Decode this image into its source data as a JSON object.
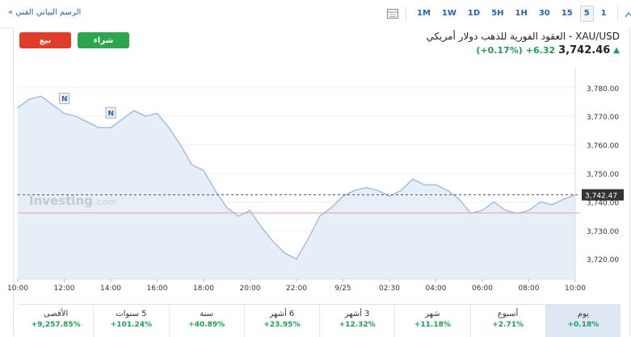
{
  "toolbar": {
    "technical_chart_label": "« الرسم البياني الفني",
    "timeframes": [
      "1M",
      "1W",
      "1D",
      "5H",
      "1H",
      "30",
      "15",
      "5",
      "1"
    ],
    "active_timeframe": "5"
  },
  "trade": {
    "sell_label": "بيع",
    "buy_label": "شراء"
  },
  "instrument": {
    "title": "XAU/USD - العقود الفورية للذهب دولار أمريكي",
    "last_price": "3,742.46",
    "change": "+6.32",
    "change_pct": "(+0.17%)",
    "direction": "up"
  },
  "chart": {
    "watermark_brand": "Investing",
    "watermark_suffix": ".com",
    "marker_label": "N",
    "y_ticks": [
      "3,780.00",
      "3,770.00",
      "3,760.00",
      "3,750.00",
      "3,740.00",
      "3,730.00",
      "3,720.00"
    ],
    "x_ticks": [
      "10:00",
      "12:00",
      "14:00",
      "16:00",
      "18:00",
      "20:00",
      "22:00",
      "9/25",
      "02:30",
      "04:00",
      "06:00",
      "08:00",
      "10:00"
    ],
    "current_price_label": "3,742.47",
    "colors": {
      "line": "#8fb4dc",
      "fill": "#e6eef7",
      "ref_line": "#e8a0a0",
      "label_bg": "#333333"
    }
  },
  "chart_data": {
    "type": "area",
    "x": [
      "10:00",
      "10:30",
      "11:00",
      "11:30",
      "12:00",
      "12:30",
      "13:00",
      "13:30",
      "14:00",
      "14:30",
      "15:00",
      "15:30",
      "16:00",
      "16:30",
      "17:00",
      "17:30",
      "18:00",
      "18:30",
      "19:00",
      "19:30",
      "20:00",
      "20:30",
      "21:00",
      "21:30",
      "22:00",
      "22:30",
      "23:00",
      "23:30",
      "9/25 00:00",
      "00:30",
      "01:00",
      "01:30",
      "02:00",
      "02:30",
      "03:00",
      "03:30",
      "04:00",
      "04:30",
      "05:00",
      "05:30",
      "06:00",
      "06:30",
      "07:00",
      "07:30",
      "08:00",
      "08:30",
      "09:00",
      "09:30",
      "10:00"
    ],
    "values": [
      3773,
      3776,
      3777,
      3774,
      3771,
      3770,
      3768,
      3766,
      3766,
      3769,
      3772,
      3770,
      3771,
      3766,
      3760,
      3753,
      3751,
      3744,
      3738,
      3735,
      3737,
      3731,
      3726,
      3722,
      3720,
      3727,
      3735,
      3738,
      3742,
      3744,
      3745,
      3744,
      3742,
      3744,
      3748,
      3746,
      3746,
      3744,
      3741,
      3736,
      3737,
      3740,
      3737,
      3736,
      3737,
      3740,
      3739,
      3741,
      3742.46
    ],
    "ylim": [
      3713,
      3787
    ],
    "reference_line": 3736.14,
    "current_price": 3742.47,
    "news_markers": [
      {
        "x": "12:00",
        "label": "N"
      },
      {
        "x": "14:00",
        "label": "N"
      }
    ]
  },
  "performance": [
    {
      "label": "الأقصى",
      "value": "+9,257.85%"
    },
    {
      "label": "5 سنوات",
      "value": "+101.24%"
    },
    {
      "label": "سنة",
      "value": "+40.89%"
    },
    {
      "label": "6 أشهر",
      "value": "+23.95%"
    },
    {
      "label": "3 أشهر",
      "value": "+12.32%"
    },
    {
      "label": "شهر",
      "value": "+11.18%"
    },
    {
      "label": "أسبوع",
      "value": "+2.71%"
    },
    {
      "label": "يوم",
      "value": "+0.18%"
    }
  ],
  "active_performance": "يوم"
}
